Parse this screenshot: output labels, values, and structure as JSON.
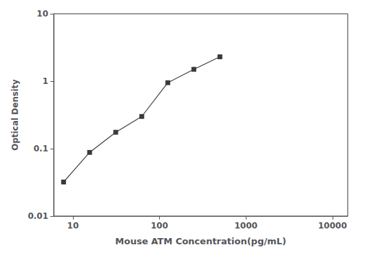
{
  "chart_data": {
    "type": "line",
    "x": [
      7.8,
      15.6,
      31.25,
      62.5,
      125,
      250,
      500
    ],
    "values": [
      0.032,
      0.088,
      0.175,
      0.3,
      0.95,
      1.5,
      2.3
    ],
    "xlabel": "Mouse ATM Concentration(pg/mL)",
    "ylabel": "Optical Density",
    "xlim": [
      6,
      15000
    ],
    "ylim": [
      0.01,
      10
    ],
    "xticks": [
      10,
      100,
      1000,
      10000
    ],
    "yticks": [
      0.01,
      0.1,
      1,
      10
    ],
    "log": true,
    "grid": false,
    "color": "#3a3a3a",
    "marker": "square"
  }
}
